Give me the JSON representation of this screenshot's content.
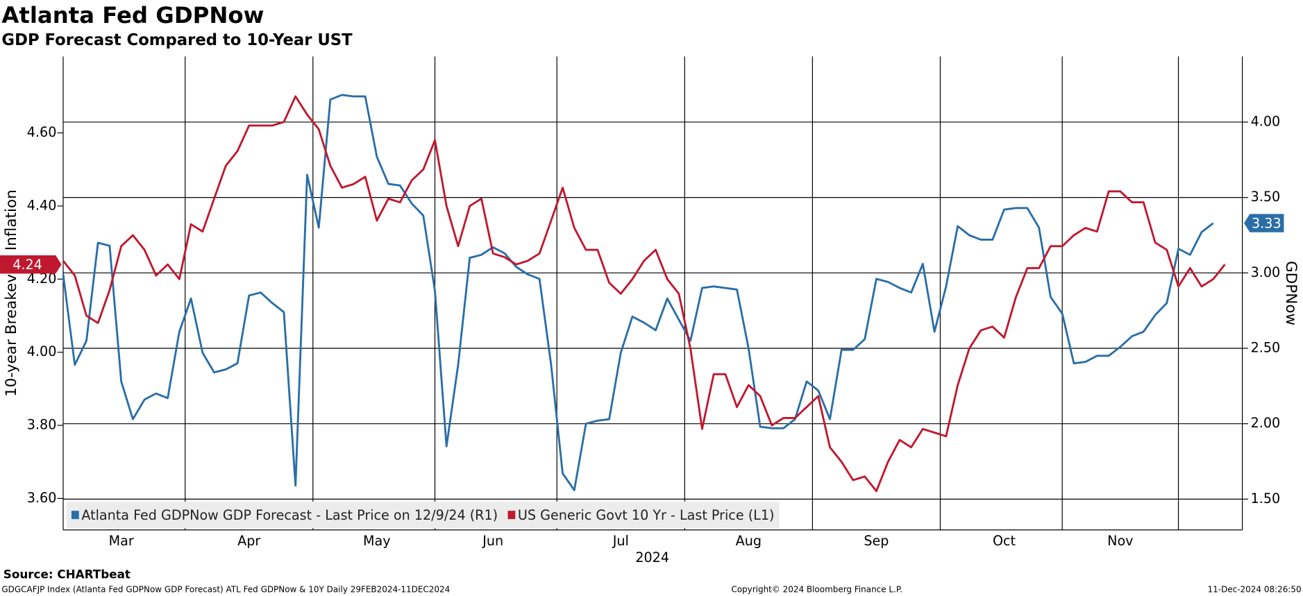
{
  "chart_data": {
    "type": "line",
    "title": "Atlanta Fed GDPNow",
    "subtitle": "GDP Forecast Compared to 10-Year UST",
    "ylabel": "10-year Breakeven Inflation",
    "y2label": "GDPNow",
    "xlabel": "2024",
    "source": "Source: CHARTbeat",
    "footer_left": "GDGCAFJP Index (Atlanta Fed GDPNow GDP Forecast) ATL Fed GDPNow & 10Y  Daily 29FEB2024-11DEC2024",
    "footer_center": "Copyright© 2024 Bloomberg Finance L.P.",
    "footer_right": "11-Dec-2024 08:26:50",
    "categories": [
      null,
      null,
      null,
      null,
      null,
      "Mar",
      null,
      null,
      null,
      null,
      null,
      null,
      null,
      null,
      null,
      null,
      "Apr",
      null,
      null,
      null,
      null,
      null,
      null,
      null,
      null,
      null,
      null,
      "May",
      null,
      null,
      null,
      null,
      null,
      null,
      null,
      null,
      null,
      "Jun",
      null,
      null,
      null,
      null,
      null,
      null,
      null,
      null,
      null,
      null,
      "Jul",
      null,
      null,
      null,
      null,
      null,
      null,
      null,
      null,
      null,
      null,
      "Aug",
      null,
      null,
      null,
      null,
      null,
      null,
      null,
      null,
      null,
      null,
      "Sep",
      null,
      null,
      null,
      null,
      null,
      null,
      null,
      null,
      null,
      null,
      "Oct",
      null,
      null,
      null,
      null,
      null,
      null,
      null,
      null,
      null,
      "Nov",
      null,
      null,
      null,
      null,
      null,
      null,
      null,
      null,
      null
    ],
    "series": [
      {
        "name": "Atlanta Fed GDPNow GDP Forecast - Last Price on 12/9/24 (R1)",
        "color": "#2a6ea8",
        "axis": "y2",
        "values": [
          2.99,
          2.39,
          2.55,
          3.2,
          3.18,
          2.28,
          2.03,
          2.16,
          2.2,
          2.17,
          2.61,
          2.83,
          2.47,
          2.34,
          2.36,
          2.4,
          2.85,
          2.87,
          2.8,
          2.74,
          1.59,
          3.65,
          3.3,
          4.15,
          4.18,
          4.17,
          4.17,
          3.77,
          3.59,
          3.58,
          3.46,
          3.38,
          2.88,
          1.85,
          2.39,
          3.1,
          3.12,
          3.17,
          3.13,
          3.04,
          2.99,
          2.96,
          2.39,
          1.67,
          1.56,
          2.0,
          2.02,
          2.03,
          2.47,
          2.71,
          2.67,
          2.62,
          2.83,
          2.69,
          2.55,
          2.9,
          2.91,
          2.9,
          2.89,
          2.5,
          1.98,
          1.97,
          1.97,
          2.03,
          2.28,
          2.22,
          2.03,
          2.49,
          2.49,
          2.56,
          2.96,
          2.94,
          2.9,
          2.87,
          3.06,
          2.61,
          2.91,
          3.31,
          3.25,
          3.22,
          3.22,
          3.42,
          3.43,
          3.43,
          3.3,
          2.84,
          2.73,
          2.4,
          2.41,
          2.45,
          2.45,
          2.51,
          2.58,
          2.61,
          2.72,
          2.8,
          3.16,
          3.12,
          3.27,
          3.33,
          null
        ]
      },
      {
        "name": "US Generic Govt 10 Yr - Last Price (L1)",
        "color": "#c0182f",
        "axis": "y",
        "values": [
          4.25,
          4.21,
          4.1,
          4.08,
          4.17,
          4.29,
          4.32,
          4.28,
          4.21,
          4.24,
          4.2,
          4.35,
          4.33,
          4.42,
          4.51,
          4.55,
          4.62,
          4.62,
          4.62,
          4.63,
          4.7,
          4.65,
          4.61,
          4.51,
          4.45,
          4.46,
          4.48,
          4.36,
          4.42,
          4.41,
          4.47,
          4.5,
          4.58,
          4.4,
          4.29,
          4.4,
          4.42,
          4.27,
          4.26,
          4.24,
          4.25,
          4.27,
          4.36,
          4.45,
          4.34,
          4.28,
          4.28,
          4.19,
          4.16,
          4.2,
          4.25,
          4.28,
          4.2,
          4.16,
          4.01,
          3.79,
          3.94,
          3.94,
          3.85,
          3.91,
          3.88,
          3.8,
          3.82,
          3.82,
          3.85,
          3.88,
          3.74,
          3.7,
          3.65,
          3.66,
          3.62,
          3.7,
          3.76,
          3.74,
          3.79,
          3.78,
          3.77,
          3.91,
          4.01,
          4.06,
          4.07,
          4.04,
          4.15,
          4.23,
          4.23,
          4.29,
          4.29,
          4.32,
          4.34,
          4.33,
          4.44,
          4.44,
          4.41,
          4.41,
          4.3,
          4.28,
          4.18,
          4.23,
          4.18,
          4.2,
          4.24
        ]
      }
    ],
    "ylim": [
      3.514,
      4.809
    ],
    "yticks": [
      {
        "value": 3.6,
        "label": "3.60"
      },
      {
        "value": 3.8,
        "label": "3.80"
      },
      {
        "value": 4.0,
        "label": "4.00"
      },
      {
        "value": 4.2,
        "label": "4.20"
      },
      {
        "value": 4.4,
        "label": "4.40"
      },
      {
        "value": 4.6,
        "label": "4.60"
      }
    ],
    "y2lim": [
      1.296,
      4.435
    ],
    "y2ticks": [
      {
        "value": 1.5,
        "label": "1.50"
      },
      {
        "value": 2.0,
        "label": "2.00"
      },
      {
        "value": 2.5,
        "label": "2.50"
      },
      {
        "value": 3.0,
        "label": "3.00"
      },
      {
        "value": 3.5,
        "label": "3.50"
      },
      {
        "value": 4.0,
        "label": "4.00"
      }
    ],
    "grid": true,
    "legend": "lower left"
  }
}
